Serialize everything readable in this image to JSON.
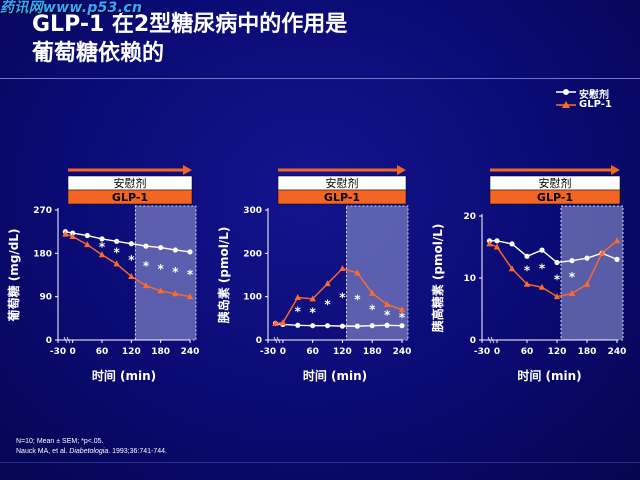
{
  "watermark": "药讯网www.p53.cn",
  "title": {
    "line1": "GLP-1 在2型糖尿病中的作用是",
    "line2": "葡萄糖依赖的"
  },
  "legend": [
    {
      "label": "安慰剂",
      "color": "#ffffff",
      "marker": "circle"
    },
    {
      "label": "GLP-1",
      "color": "#ff6a2a",
      "marker": "triangle"
    }
  ],
  "colors": {
    "placebo": "#ffffff",
    "glp1": "#ff6a2a",
    "arrow": "#f26522",
    "band_placebo": "#ffffff",
    "band_glp1": "#f26522",
    "shade": "#7c82c2"
  },
  "footer": {
    "line1": "N=10; Mean ± SEM; *p<.05.",
    "line2_prefix": "Nauck MA, et al. ",
    "line2_journal": "Diabetologia",
    "line2_suffix": ". 1993;36:741-744."
  },
  "chart_data": [
    {
      "type": "line",
      "band_labels": {
        "placebo": "安慰剂",
        "glp1": "GLP-1"
      },
      "xlabel": "时间 (min)",
      "ylabel": "葡萄糖 (mg/dL)",
      "ylim": [
        0,
        270
      ],
      "yticks": [
        0,
        90,
        180,
        270
      ],
      "xticks": [
        -30,
        0,
        60,
        120,
        180,
        240
      ],
      "shaded_range": [
        120,
        240
      ],
      "series": [
        {
          "name": "安慰剂",
          "marker": "circle",
          "x": [
            -15,
            0,
            30,
            60,
            90,
            120,
            150,
            180,
            210,
            240
          ],
          "y": [
            225,
            222,
            217,
            210,
            205,
            200,
            195,
            192,
            187,
            183
          ]
        },
        {
          "name": "GLP-1",
          "marker": "triangle",
          "x": [
            -15,
            0,
            30,
            60,
            90,
            120,
            150,
            180,
            210,
            240
          ],
          "y": [
            220,
            215,
            198,
            177,
            158,
            132,
            113,
            102,
            96,
            90
          ]
        }
      ],
      "asterisks_x": [
        60,
        90,
        120,
        150,
        180,
        210,
        240
      ]
    },
    {
      "type": "line",
      "band_labels": {
        "placebo": "安慰剂",
        "glp1": "GLP-1"
      },
      "xlabel": "时间 (min)",
      "ylabel": "胰岛素 (pmol/L)",
      "ylim": [
        0,
        300
      ],
      "yticks": [
        0,
        100,
        200,
        300
      ],
      "xticks": [
        -30,
        0,
        60,
        120,
        180,
        240
      ],
      "shaded_range": [
        120,
        240
      ],
      "series": [
        {
          "name": "安慰剂",
          "marker": "circle",
          "x": [
            -15,
            0,
            30,
            60,
            90,
            120,
            150,
            180,
            210,
            240
          ],
          "y": [
            38,
            36,
            34,
            33,
            33,
            32,
            32,
            33,
            34,
            33
          ]
        },
        {
          "name": "GLP-1",
          "marker": "triangle",
          "x": [
            -15,
            0,
            30,
            60,
            90,
            120,
            150,
            180,
            210,
            240
          ],
          "y": [
            38,
            40,
            98,
            95,
            130,
            165,
            155,
            108,
            82,
            70
          ]
        }
      ],
      "asterisks_x": [
        30,
        60,
        90,
        120,
        150,
        180,
        210,
        240
      ]
    },
    {
      "type": "line",
      "band_labels": {
        "placebo": "安慰剂",
        "glp1": "GLP-1"
      },
      "xlabel": "时间 (min)",
      "ylabel": "胰高糖素 (pmol/L)",
      "ylim": [
        0,
        20
      ],
      "yticks": [
        0,
        10,
        20
      ],
      "xticks": [
        -30,
        0,
        60,
        120,
        180,
        240
      ],
      "shaded_range": [
        120,
        240
      ],
      "series": [
        {
          "name": "安慰剂",
          "marker": "circle",
          "x": [
            -15,
            0,
            30,
            60,
            90,
            120,
            150,
            180,
            210,
            240
          ],
          "y": [
            16,
            16,
            15.5,
            13.5,
            14.5,
            12.5,
            12.8,
            13.2,
            14,
            13
          ]
        },
        {
          "name": "GLP-1",
          "marker": "triangle",
          "x": [
            -15,
            0,
            30,
            60,
            90,
            120,
            150,
            180,
            210,
            240
          ],
          "y": [
            15.5,
            15,
            11.5,
            9,
            8.5,
            7,
            7.5,
            9,
            14,
            16
          ]
        }
      ],
      "asterisks_x": [
        60,
        90,
        120,
        150
      ]
    }
  ]
}
